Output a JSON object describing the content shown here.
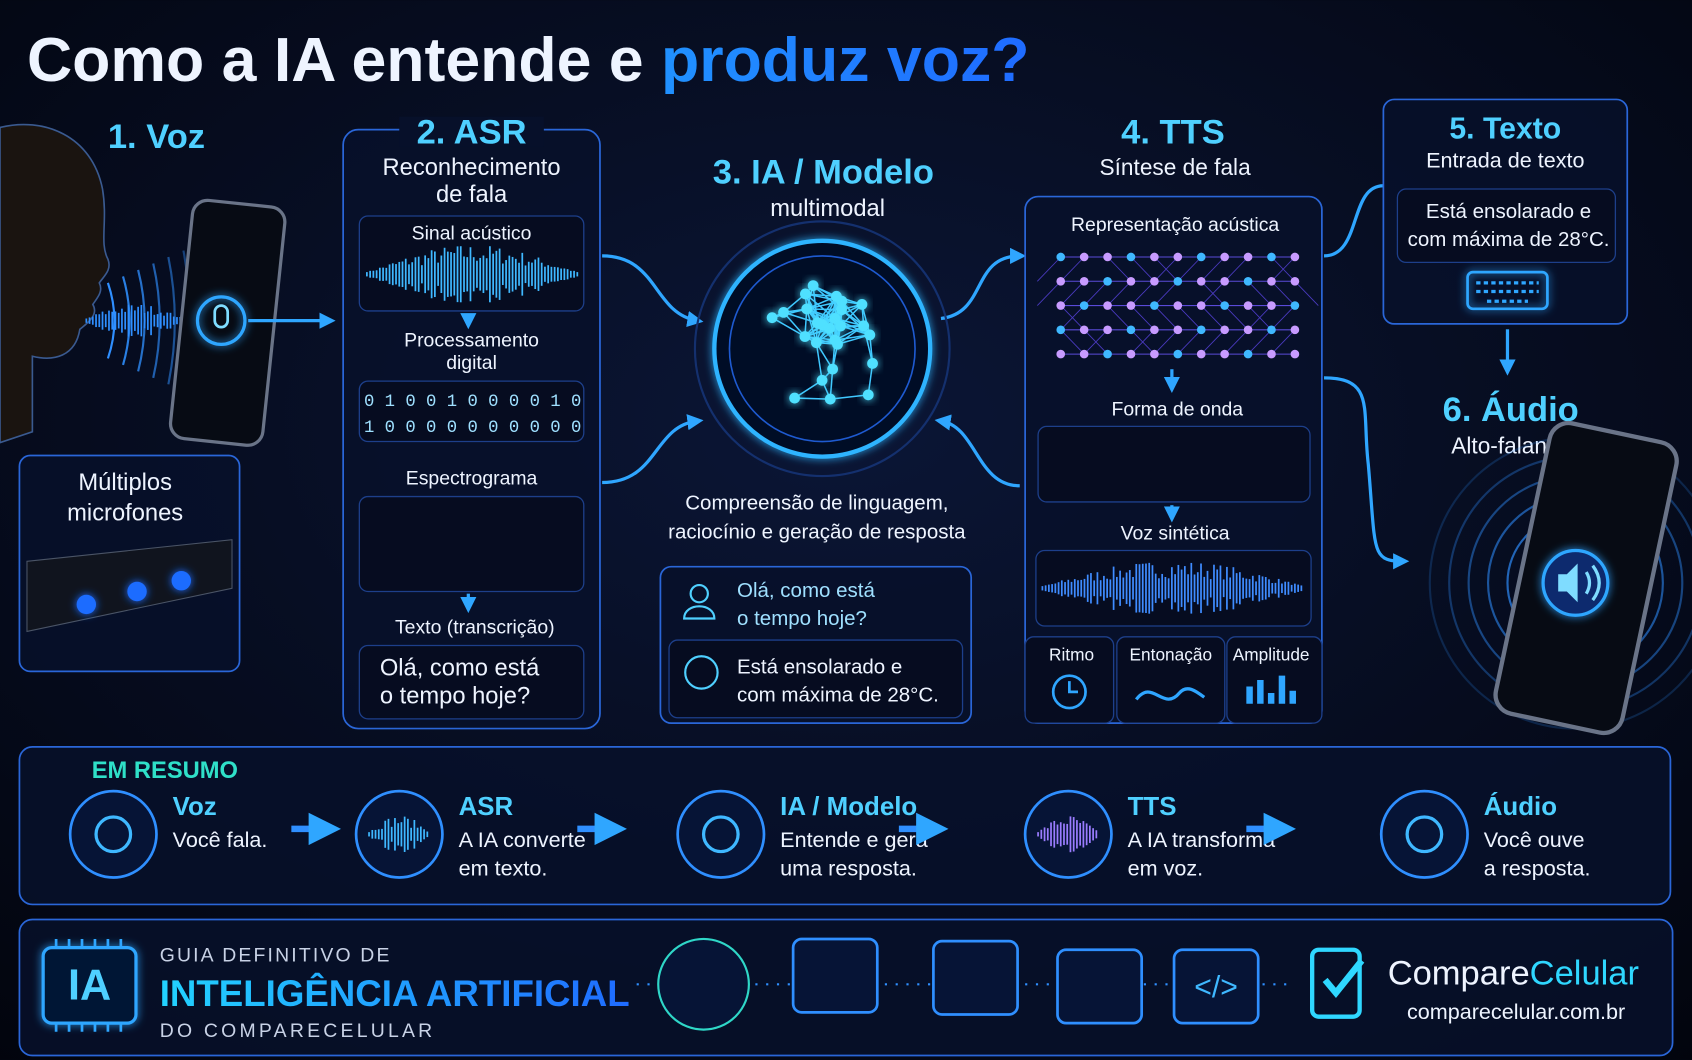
{
  "header": {
    "title": "Como a IA entende e",
    "title_highlight": "produz voz?"
  },
  "voice": {
    "title": "1. Voz",
    "microphones": [
      "Múltiplos",
      "microfones"
    ]
  },
  "asr": {
    "title": "2. ASR",
    "subtitle": [
      "Reconhecimento",
      "de fala"
    ],
    "acoustic_signal": "Sinal acústico",
    "processing": [
      "Processamento",
      "digital"
    ],
    "binary": [
      "0 1 0 0 1 0 0 0 0 1 0",
      "1 0 0 0 0 0 0 0 0 0 0"
    ],
    "spectrogram": "Espectrograma",
    "transcription_label": "Texto (transcrição)",
    "transcription": [
      "Olá, como está",
      "o tempo hoje?"
    ]
  },
  "model": {
    "title": "3. IA / Modelo",
    "subtitle": "multimodal",
    "description": [
      "Compreensão de linguagem,",
      "raciocínio e geração de resposta"
    ],
    "chat": [
      [
        "Olá, como está",
        "o tempo hoje?"
      ],
      [
        "Está ensolarado e",
        "com máxima de 28°C."
      ]
    ]
  },
  "tts": {
    "title": "4. TTS",
    "subtitle": "Síntese de fala",
    "acoustic_representation": "Representação acústica",
    "waveform": "Forma de onda",
    "synthetic_voice": "Voz sintética",
    "features": [
      "Ritmo",
      "Entonação",
      "Amplitude"
    ]
  },
  "text_input": {
    "title": "5. Texto",
    "subtitle": "Entrada de texto",
    "text": [
      "Está ensolarado e",
      "com máxima de 28°C."
    ]
  },
  "audio": {
    "title": "6. Áudio",
    "subtitle": "Alto-falante"
  },
  "summary": {
    "title": "EM RESUMO",
    "items": [
      {
        "title": "Voz",
        "text": [
          "Você fala."
        ]
      },
      {
        "title": "ASR",
        "text": [
          "A IA converte",
          "em texto."
        ]
      },
      {
        "title": "IA / Modelo",
        "text": [
          "Entende e gera",
          "uma resposta."
        ]
      },
      {
        "title": "TTS",
        "text": [
          "A IA transforma",
          "em voz."
        ]
      },
      {
        "title": "Áudio",
        "text": [
          "Você ouve",
          "a resposta."
        ]
      }
    ]
  },
  "footer": {
    "badge": "IA",
    "kicker": "GUIA DEFINITIVO DE",
    "title": "INTELIGÊNCIA ARTIFICIAL",
    "subtitle": "DO COMPARECELULAR",
    "brand": "Compare",
    "brand_highlight": "Celular",
    "url": "comparecelular.com.br"
  }
}
